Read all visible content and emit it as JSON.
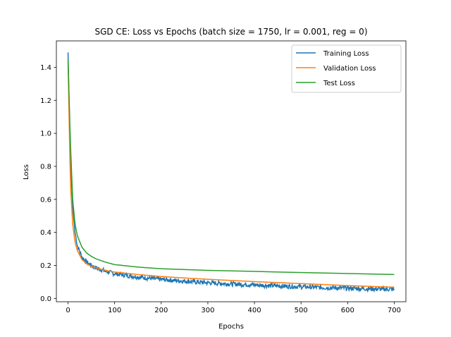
{
  "chart_data": {
    "type": "line",
    "title": "SGD CE: Loss vs Epochs (batch size = 1750, lr = 0.001, reg = 0)",
    "xlabel": "Epochs",
    "ylabel": "Loss",
    "xlim": [
      -25,
      725
    ],
    "ylim": [
      -0.02,
      1.56
    ],
    "xticks": [
      0,
      100,
      200,
      300,
      400,
      500,
      600,
      700
    ],
    "yticks": [
      0.0,
      0.2,
      0.4,
      0.6,
      0.8,
      1.0,
      1.2,
      1.4
    ],
    "ytick_labels": [
      "0.0",
      "0.2",
      "0.4",
      "0.6",
      "0.8",
      "1.0",
      "1.2",
      "1.4"
    ],
    "xtick_labels": [
      "0",
      "100",
      "200",
      "300",
      "400",
      "500",
      "600",
      "700"
    ],
    "grid": false,
    "legend_position": "top-right",
    "series": [
      {
        "name": "Training Loss",
        "color": "#1f77b4",
        "noisy": true,
        "x": [
          0,
          5,
          10,
          15,
          20,
          30,
          40,
          50,
          60,
          80,
          100,
          150,
          200,
          250,
          300,
          350,
          400,
          450,
          500,
          550,
          600,
          650,
          700
        ],
        "y": [
          1.49,
          0.85,
          0.55,
          0.4,
          0.32,
          0.25,
          0.22,
          0.2,
          0.185,
          0.165,
          0.15,
          0.13,
          0.115,
          0.105,
          0.095,
          0.088,
          0.082,
          0.076,
          0.071,
          0.066,
          0.062,
          0.058,
          0.055
        ]
      },
      {
        "name": "Validation Loss",
        "color": "#ff7f0e",
        "noisy": false,
        "x": [
          0,
          5,
          10,
          15,
          20,
          30,
          40,
          50,
          60,
          80,
          100,
          150,
          200,
          250,
          300,
          350,
          400,
          450,
          500,
          550,
          600,
          650,
          700
        ],
        "y": [
          1.43,
          0.7,
          0.45,
          0.34,
          0.29,
          0.235,
          0.21,
          0.195,
          0.185,
          0.17,
          0.16,
          0.145,
          0.133,
          0.124,
          0.116,
          0.109,
          0.102,
          0.096,
          0.09,
          0.084,
          0.078,
          0.073,
          0.068
        ]
      },
      {
        "name": "Test Loss",
        "color": "#2ca02c",
        "noisy": false,
        "x": [
          0,
          5,
          10,
          15,
          20,
          30,
          40,
          50,
          60,
          80,
          100,
          150,
          200,
          250,
          300,
          350,
          400,
          450,
          500,
          550,
          600,
          650,
          700
        ],
        "y": [
          1.45,
          0.95,
          0.6,
          0.45,
          0.38,
          0.31,
          0.275,
          0.255,
          0.24,
          0.22,
          0.205,
          0.19,
          0.18,
          0.175,
          0.17,
          0.167,
          0.164,
          0.16,
          0.157,
          0.154,
          0.151,
          0.148,
          0.145
        ]
      }
    ]
  }
}
